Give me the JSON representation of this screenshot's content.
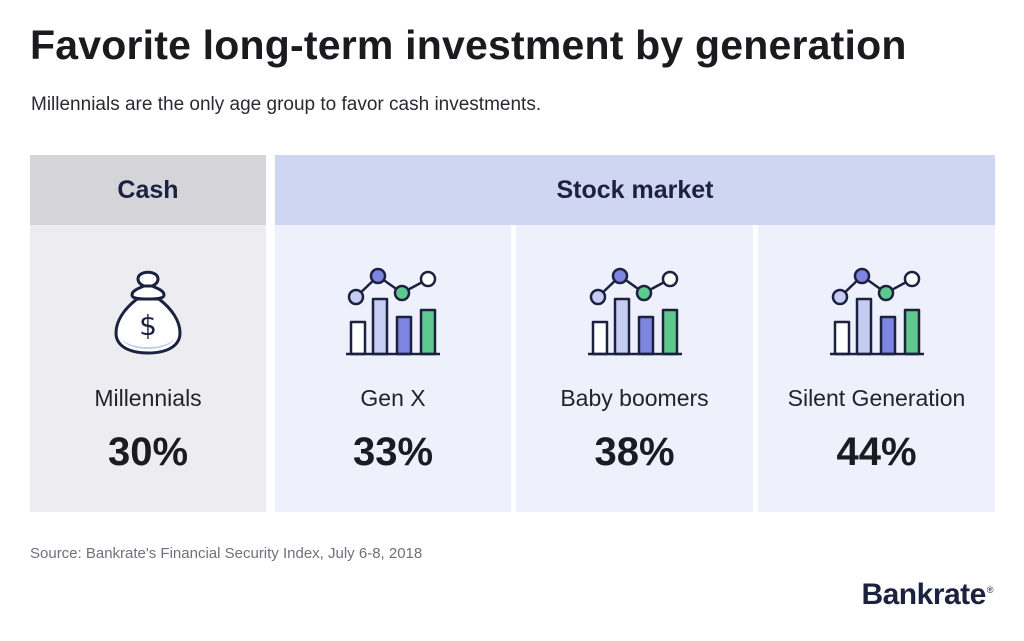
{
  "title": "Favorite long-term investment by generation",
  "subtitle": "Millennials are the only age group to favor cash investments.",
  "source": "Source: Bankrate's Financial Security Index, July 6-8, 2018",
  "logo": "Bankrate",
  "logo_mark": "®",
  "colors": {
    "navy": "#1c2140",
    "cash_header": "#d4d4d9",
    "stock_header": "#cfd6f1",
    "cash_card": "#ededf1",
    "stock_card": "#eef0fb",
    "icon_purple": "#7d85e0",
    "icon_blue": "#c5cdf3",
    "icon_green": "#5ec88e"
  },
  "chart_data": {
    "type": "table",
    "title": "Favorite long-term investment by generation",
    "subtitle": "Millennials are the only age group to favor cash investments.",
    "groups": [
      {
        "name": "Cash",
        "icon": "money-bag-icon",
        "items": [
          {
            "generation": "Millennials",
            "value": 30,
            "display": "30%"
          }
        ]
      },
      {
        "name": "Stock market",
        "icon": "stock-chart-icon",
        "items": [
          {
            "generation": "Gen X",
            "value": 33,
            "display": "33%"
          },
          {
            "generation": "Baby boomers",
            "value": 38,
            "display": "38%"
          },
          {
            "generation": "Silent Generation",
            "value": 44,
            "display": "44%"
          }
        ]
      }
    ]
  }
}
